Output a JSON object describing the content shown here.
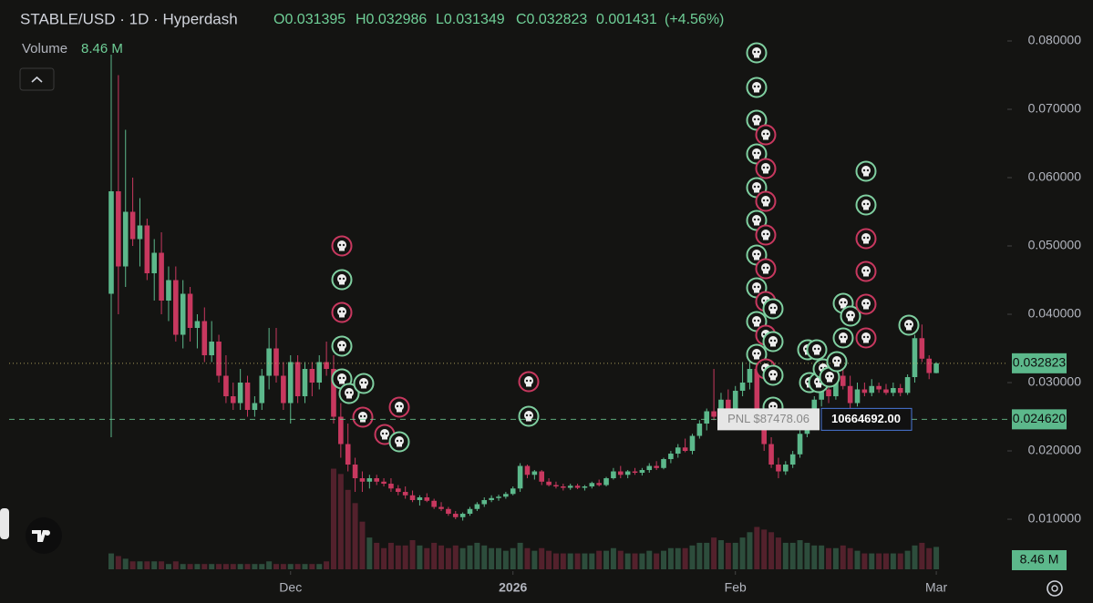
{
  "chart_data": {
    "type": "candlestick",
    "title": "STABLE/USD · 1D · Hyperdash",
    "ohlc_text": {
      "open": "O0.031395",
      "high": "H0.032986",
      "low": "L0.031349",
      "close": "C0.032823",
      "change": "0.001431",
      "change_pct": "(+4.56%)"
    },
    "volume_label": "Volume",
    "volume_value": "8.46 M",
    "last_price": {
      "value": 0.032823,
      "label": "0.032823"
    },
    "position_price": {
      "value": 0.02462,
      "label": "0.024620"
    },
    "pnl_label": "PNL $87478.06",
    "position_size": "10664692.00",
    "ylim": [
      0.00267,
      0.086
    ],
    "yticks": [
      {
        "value": 0.08,
        "label": "0.080000"
      },
      {
        "value": 0.07,
        "label": "0.070000"
      },
      {
        "value": 0.06,
        "label": "0.060000"
      },
      {
        "value": 0.05,
        "label": "0.050000"
      },
      {
        "value": 0.04,
        "label": "0.040000"
      },
      {
        "value": 0.03,
        "label": "0.030000"
      },
      {
        "value": 0.02,
        "label": "0.020000"
      },
      {
        "value": 0.01,
        "label": "0.010000"
      }
    ],
    "xlim": [
      -15.5,
      124.9
    ],
    "xticks": [
      {
        "value": 25,
        "label": "Dec"
      },
      {
        "value": 56,
        "label": "2026"
      },
      {
        "value": 87,
        "label": "Feb"
      },
      {
        "value": 115,
        "label": "Mar"
      }
    ],
    "volume_lim": [
      0,
      215
    ],
    "up_color": "#5cb88b",
    "down_color": "#c8385f",
    "candles": [
      [
        0.043,
        0.078,
        0.022,
        0.058,
        6
      ],
      [
        0.058,
        0.075,
        0.04,
        0.047,
        5
      ],
      [
        0.047,
        0.067,
        0.044,
        0.055,
        4
      ],
      [
        0.055,
        0.06,
        0.05,
        0.051,
        3
      ],
      [
        0.051,
        0.057,
        0.047,
        0.053,
        3
      ],
      [
        0.053,
        0.054,
        0.045,
        0.046,
        3
      ],
      [
        0.046,
        0.051,
        0.042,
        0.049,
        3
      ],
      [
        0.049,
        0.052,
        0.04,
        0.042,
        3
      ],
      [
        0.042,
        0.047,
        0.039,
        0.045,
        2
      ],
      [
        0.045,
        0.047,
        0.036,
        0.037,
        3
      ],
      [
        0.037,
        0.045,
        0.035,
        0.043,
        2
      ],
      [
        0.043,
        0.044,
        0.036,
        0.038,
        2
      ],
      [
        0.038,
        0.04,
        0.035,
        0.039,
        2
      ],
      [
        0.039,
        0.041,
        0.033,
        0.034,
        2
      ],
      [
        0.034,
        0.039,
        0.033,
        0.036,
        2
      ],
      [
        0.036,
        0.037,
        0.03,
        0.031,
        2
      ],
      [
        0.031,
        0.034,
        0.027,
        0.028,
        2
      ],
      [
        0.028,
        0.03,
        0.026,
        0.027,
        2
      ],
      [
        0.027,
        0.032,
        0.026,
        0.03,
        2
      ],
      [
        0.03,
        0.031,
        0.025,
        0.026,
        2
      ],
      [
        0.026,
        0.028,
        0.025,
        0.027,
        2
      ],
      [
        0.027,
        0.032,
        0.026,
        0.031,
        2
      ],
      [
        0.031,
        0.038,
        0.029,
        0.035,
        3
      ],
      [
        0.035,
        0.038,
        0.03,
        0.031,
        2
      ],
      [
        0.031,
        0.033,
        0.026,
        0.027,
        2
      ],
      [
        0.027,
        0.034,
        0.024,
        0.033,
        2
      ],
      [
        0.033,
        0.034,
        0.027,
        0.028,
        2
      ],
      [
        0.028,
        0.033,
        0.027,
        0.032,
        2
      ],
      [
        0.032,
        0.033,
        0.028,
        0.03,
        2
      ],
      [
        0.03,
        0.034,
        0.029,
        0.033,
        2
      ],
      [
        0.033,
        0.036,
        0.031,
        0.032,
        3
      ],
      [
        0.032,
        0.034,
        0.024,
        0.025,
        38
      ],
      [
        0.025,
        0.027,
        0.019,
        0.021,
        36
      ],
      [
        0.021,
        0.024,
        0.017,
        0.018,
        30
      ],
      [
        0.018,
        0.019,
        0.014,
        0.016,
        25
      ],
      [
        0.016,
        0.017,
        0.014,
        0.0155,
        18
      ],
      [
        0.0155,
        0.0165,
        0.0145,
        0.016,
        12
      ],
      [
        0.016,
        0.0165,
        0.015,
        0.0155,
        10
      ],
      [
        0.0155,
        0.016,
        0.0148,
        0.0152,
        8
      ],
      [
        0.0152,
        0.016,
        0.014,
        0.0145,
        10
      ],
      [
        0.0145,
        0.015,
        0.0135,
        0.014,
        9
      ],
      [
        0.014,
        0.0148,
        0.013,
        0.0135,
        9
      ],
      [
        0.0135,
        0.0142,
        0.0125,
        0.0128,
        11
      ],
      [
        0.0128,
        0.0135,
        0.012,
        0.0132,
        9
      ],
      [
        0.0132,
        0.0138,
        0.0125,
        0.0127,
        8
      ],
      [
        0.0127,
        0.013,
        0.0115,
        0.0118,
        10
      ],
      [
        0.0118,
        0.0125,
        0.0112,
        0.0115,
        9
      ],
      [
        0.0115,
        0.0118,
        0.0105,
        0.0108,
        8
      ],
      [
        0.0108,
        0.0112,
        0.01,
        0.0103,
        9
      ],
      [
        0.0103,
        0.011,
        0.0098,
        0.0108,
        8
      ],
      [
        0.0108,
        0.0118,
        0.0105,
        0.0115,
        9
      ],
      [
        0.0115,
        0.0125,
        0.0112,
        0.0122,
        10
      ],
      [
        0.0122,
        0.0132,
        0.0118,
        0.0128,
        9
      ],
      [
        0.0128,
        0.0135,
        0.0125,
        0.0131,
        8
      ],
      [
        0.0131,
        0.0136,
        0.0127,
        0.0133,
        8
      ],
      [
        0.0133,
        0.014,
        0.013,
        0.0137,
        7
      ],
      [
        0.0137,
        0.0148,
        0.0135,
        0.0145,
        8
      ],
      [
        0.0145,
        0.0182,
        0.014,
        0.0178,
        10
      ],
      [
        0.0178,
        0.018,
        0.016,
        0.0165,
        8
      ],
      [
        0.0165,
        0.0172,
        0.0158,
        0.017,
        7
      ],
      [
        0.017,
        0.0172,
        0.015,
        0.0155,
        8
      ],
      [
        0.0155,
        0.016,
        0.0148,
        0.015,
        7
      ],
      [
        0.015,
        0.0155,
        0.0145,
        0.0148,
        6
      ],
      [
        0.0148,
        0.0152,
        0.0142,
        0.0146,
        6
      ],
      [
        0.0146,
        0.0152,
        0.0143,
        0.0149,
        6
      ],
      [
        0.0149,
        0.0152,
        0.0144,
        0.0146,
        6
      ],
      [
        0.0146,
        0.015,
        0.0142,
        0.0148,
        6
      ],
      [
        0.0148,
        0.0155,
        0.0145,
        0.0153,
        6
      ],
      [
        0.0153,
        0.0158,
        0.0148,
        0.015,
        7
      ],
      [
        0.015,
        0.0162,
        0.0148,
        0.016,
        7
      ],
      [
        0.016,
        0.0175,
        0.0158,
        0.017,
        8
      ],
      [
        0.017,
        0.0178,
        0.016,
        0.0165,
        7
      ],
      [
        0.0165,
        0.0172,
        0.016,
        0.017,
        6
      ],
      [
        0.017,
        0.0175,
        0.0165,
        0.0168,
        6
      ],
      [
        0.0168,
        0.0175,
        0.0164,
        0.0172,
        6
      ],
      [
        0.0172,
        0.0182,
        0.0168,
        0.0178,
        7
      ],
      [
        0.0178,
        0.0185,
        0.0172,
        0.0175,
        6
      ],
      [
        0.0175,
        0.019,
        0.0173,
        0.0188,
        7
      ],
      [
        0.0188,
        0.02,
        0.0182,
        0.0196,
        8
      ],
      [
        0.0196,
        0.021,
        0.019,
        0.0205,
        8
      ],
      [
        0.0205,
        0.0218,
        0.0198,
        0.02,
        8
      ],
      [
        0.02,
        0.0225,
        0.0195,
        0.0222,
        9
      ],
      [
        0.0222,
        0.0245,
        0.0218,
        0.024,
        10
      ],
      [
        0.024,
        0.0262,
        0.023,
        0.0258,
        10
      ],
      [
        0.0258,
        0.032,
        0.0245,
        0.025,
        12
      ],
      [
        0.025,
        0.0285,
        0.024,
        0.0275,
        11
      ],
      [
        0.0275,
        0.029,
        0.0248,
        0.0255,
        10
      ],
      [
        0.0255,
        0.0295,
        0.025,
        0.0288,
        10
      ],
      [
        0.0288,
        0.033,
        0.028,
        0.03,
        12
      ],
      [
        0.03,
        0.0345,
        0.029,
        0.032,
        14
      ],
      [
        0.032,
        0.035,
        0.024,
        0.0255,
        16
      ],
      [
        0.0255,
        0.0265,
        0.02,
        0.021,
        15
      ],
      [
        0.021,
        0.022,
        0.0175,
        0.018,
        14
      ],
      [
        0.018,
        0.019,
        0.016,
        0.017,
        12
      ],
      [
        0.017,
        0.0185,
        0.0165,
        0.018,
        10
      ],
      [
        0.018,
        0.02,
        0.0175,
        0.0195,
        10
      ],
      [
        0.0195,
        0.023,
        0.019,
        0.0225,
        11
      ],
      [
        0.0225,
        0.026,
        0.022,
        0.025,
        10
      ],
      [
        0.025,
        0.028,
        0.0245,
        0.0275,
        9
      ],
      [
        0.0275,
        0.0305,
        0.0265,
        0.029,
        9
      ],
      [
        0.029,
        0.031,
        0.027,
        0.028,
        8
      ],
      [
        0.028,
        0.032,
        0.0275,
        0.031,
        8
      ],
      [
        0.031,
        0.0325,
        0.029,
        0.0295,
        9
      ],
      [
        0.0295,
        0.031,
        0.026,
        0.027,
        8
      ],
      [
        0.027,
        0.03,
        0.0265,
        0.029,
        7
      ],
      [
        0.029,
        0.03,
        0.028,
        0.0285,
        6
      ],
      [
        0.0285,
        0.0305,
        0.028,
        0.0295,
        6
      ],
      [
        0.0295,
        0.03,
        0.0285,
        0.029,
        6
      ],
      [
        0.029,
        0.0298,
        0.0282,
        0.0285,
        6
      ],
      [
        0.0285,
        0.03,
        0.028,
        0.0292,
        6
      ],
      [
        0.0292,
        0.0298,
        0.028,
        0.0285,
        6
      ],
      [
        0.0285,
        0.0312,
        0.0282,
        0.0308,
        7
      ],
      [
        0.0308,
        0.037,
        0.03,
        0.0365,
        9
      ],
      [
        0.0365,
        0.0385,
        0.033,
        0.0335,
        10
      ],
      [
        0.0335,
        0.034,
        0.0305,
        0.0314,
        8
      ],
      [
        0.031395,
        0.032986,
        0.031349,
        0.032823,
        8.46
      ]
    ]
  }
}
